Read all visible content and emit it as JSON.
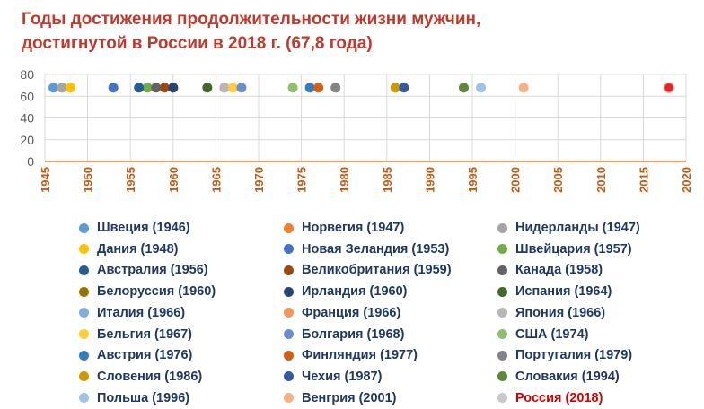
{
  "title": {
    "line1": "Годы достижения продолжительности жизни мужчин,",
    "line2": "достигнутой в России в 2018 г. (67,8 года)"
  },
  "chart_data": {
    "type": "scatter",
    "title": "Годы достижения продолжительности жизни мужчин, достигнутой в России в 2018 г. (67,8 года)",
    "xlabel": "",
    "ylabel": "",
    "xlim": [
      1945,
      2020
    ],
    "ylim": [
      0,
      80
    ],
    "x_ticks": [
      "1945",
      "1950",
      "1955",
      "1960",
      "1965",
      "1970",
      "1975",
      "1980",
      "1985",
      "1990",
      "1995",
      "2000",
      "2005",
      "2010",
      "2015",
      "2020"
    ],
    "y_ticks": [
      "0",
      "20",
      "40",
      "60",
      "80"
    ],
    "grid": true,
    "legend_position": "bottom",
    "y_value": 67.8,
    "points": [
      {
        "label": "Швеция (1946)",
        "x": 1946,
        "y": 67.8,
        "color": "#5b9bd5"
      },
      {
        "label": "Норвегия (1947)",
        "x": 1947,
        "y": 67.8,
        "color": "#ed7d31"
      },
      {
        "label": "Нидерланды (1947)",
        "x": 1947,
        "y": 67.8,
        "color": "#a5a5a5"
      },
      {
        "label": "Дания (1948)",
        "x": 1948,
        "y": 67.8,
        "color": "#ffc000"
      },
      {
        "label": "Новая Зеландия (1953)",
        "x": 1953,
        "y": 67.8,
        "color": "#4472c4"
      },
      {
        "label": "Швейцария (1957)",
        "x": 1957,
        "y": 67.8,
        "color": "#70ad47"
      },
      {
        "label": "Австралия (1956)",
        "x": 1956,
        "y": 67.8,
        "color": "#255e91"
      },
      {
        "label": "Великобритания (1959)",
        "x": 1959,
        "y": 67.8,
        "color": "#9e480e"
      },
      {
        "label": "Канада (1958)",
        "x": 1958,
        "y": 67.8,
        "color": "#636363"
      },
      {
        "label": "Белоруссия (1960)",
        "x": 1960,
        "y": 67.8,
        "color": "#997300"
      },
      {
        "label": "Ирландия (1960)",
        "x": 1960,
        "y": 67.8,
        "color": "#264478"
      },
      {
        "label": "Испания (1964)",
        "x": 1964,
        "y": 67.8,
        "color": "#43682b"
      },
      {
        "label": "Италия (1966)",
        "x": 1966,
        "y": 67.8,
        "color": "#7cafdd"
      },
      {
        "label": "Франция (1966)",
        "x": 1966,
        "y": 67.8,
        "color": "#f1975a"
      },
      {
        "label": "Япония (1966)",
        "x": 1966,
        "y": 67.8,
        "color": "#b7b7b7"
      },
      {
        "label": "Бельгия (1967)",
        "x": 1967,
        "y": 67.8,
        "color": "#ffcd33"
      },
      {
        "label": "Болгария (1968)",
        "x": 1968,
        "y": 67.8,
        "color": "#698ed0"
      },
      {
        "label": "США (1974)",
        "x": 1974,
        "y": 67.8,
        "color": "#8cc168"
      },
      {
        "label": "Австрия (1976)",
        "x": 1976,
        "y": 67.8,
        "color": "#327dc2"
      },
      {
        "label": "Финляндия (1977)",
        "x": 1977,
        "y": 67.8,
        "color": "#d26012"
      },
      {
        "label": "Португалия (1979)",
        "x": 1979,
        "y": 67.8,
        "color": "#848484"
      },
      {
        "label": "Словения (1986)",
        "x": 1986,
        "y": 67.8,
        "color": "#cc9a00"
      },
      {
        "label": "Чехия (1987)",
        "x": 1987,
        "y": 67.8,
        "color": "#335aa1"
      },
      {
        "label": "Словакия (1994)",
        "x": 1994,
        "y": 67.8,
        "color": "#5a8a39"
      },
      {
        "label": "Польша (1996)",
        "x": 1996,
        "y": 67.8,
        "color": "#9dc3e6"
      },
      {
        "label": "Венгрия (2001)",
        "x": 2001,
        "y": 67.8,
        "color": "#f4b183"
      },
      {
        "label": "Россия  (2018)",
        "x": 2018,
        "y": 67.8,
        "color": "#e0262b",
        "highlight": true
      }
    ]
  },
  "legend_colors": {
    "text": "#1f3864",
    "highlight_text": "#d40000",
    "russia_marker": "#c9c9c9"
  }
}
